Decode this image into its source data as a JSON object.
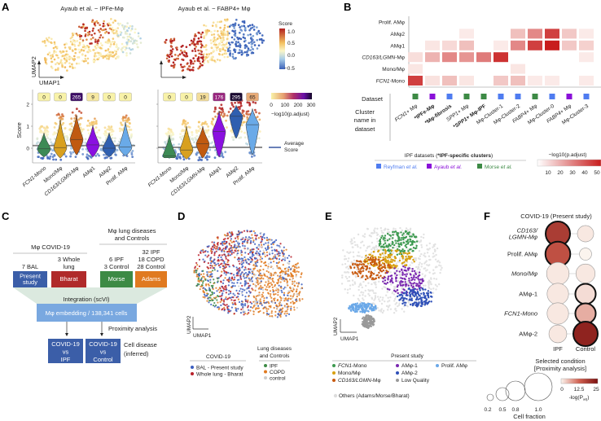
{
  "panels": {
    "A": {
      "label": "A",
      "umap_left_title": "Ayaub et al. − IPFe-Mφ",
      "umap_right_title": "Ayaub et al. − FABP4+ Mφ",
      "umap_x": "UMAP1",
      "umap_y": "UMAP2",
      "score_legend": {
        "title": "Score",
        "ticks": [
          "1.0",
          "0.5",
          "0.0",
          "−0.5"
        ]
      },
      "padj_legend": {
        "title": "−log10(p.adjust)",
        "ticks": [
          "0",
          "100",
          "200",
          "300"
        ]
      },
      "average_legend": {
        "label_line1": "Average",
        "label_line2": "Score"
      },
      "y_label": "Score",
      "y_ticks": [
        "2",
        "1",
        "0"
      ]
    },
    "B": {
      "label": "B",
      "dataset_label": "Dataset",
      "cluster_label_lines": [
        "Cluster",
        "name in",
        "dataset"
      ],
      "legend_title_plain": "IPF datasets (",
      "legend_title_bold": "*IPF-specific clusters",
      "legend_title_end": ")",
      "datasets": [
        {
          "name": "Reyfman",
          "suffix": " et al.",
          "color": "#4f7cf0"
        },
        {
          "name": "Ayaub",
          "suffix": " et al.",
          "color": "#8a10d8"
        },
        {
          "name": "Morse",
          "suffix": " et al.",
          "color": "#3d8a45"
        }
      ],
      "colorbar_title": "−log10(p.adjust)",
      "colorbar_ticks": [
        "10",
        "20",
        "30",
        "40",
        "50"
      ]
    },
    "C": {
      "label": "C",
      "covid_header": "Mφ COVID-19",
      "lung_header_1": "Mφ lung diseases",
      "lung_header_2": "and Controls",
      "sources": [
        {
          "above": [
            "7 BAL"
          ],
          "box": [
            "Present",
            "study"
          ],
          "color": "#3b5ea8"
        },
        {
          "above": [
            "3 Whole",
            "lung"
          ],
          "box": [
            "Bharat"
          ],
          "color": "#b02a2a"
        },
        {
          "above": [
            "6 IPF",
            "3 Control"
          ],
          "box": [
            "Morse"
          ],
          "color": "#3d8a45"
        },
        {
          "above": [
            "32 IPF",
            "18 COPD",
            "28 Control"
          ],
          "box": [
            "Adams"
          ],
          "color": "#e07a20"
        }
      ],
      "integration": "Integration (scVI)",
      "embedding": "Mφ embedding / 138,341 cells",
      "proximity": "Proximity analysis",
      "outcomes": [
        [
          "COVID-19",
          "vs",
          "IPF"
        ],
        [
          "COVID-19",
          "vs",
          "Control"
        ]
      ],
      "cell_disease_1": "Cell disease",
      "cell_disease_2": "(inferred)"
    },
    "D": {
      "label": "D",
      "umap_x": "UMAP1",
      "umap_y": "UMAP2",
      "covid_title": "COVID-19",
      "covid_items": [
        {
          "label": "BAL - Present study",
          "color": "#3b5ec0"
        },
        {
          "label": "Whole lung - Bharat",
          "color": "#b8202a"
        }
      ],
      "lung_title_1": "Lung diseases",
      "lung_title_2": "and Controls",
      "lung_items": [
        {
          "label": "IPF",
          "color": "#3d8a45"
        },
        {
          "label": "COPD",
          "color": "#e07a20"
        },
        {
          "label": "control",
          "color": "#cccccc"
        }
      ]
    },
    "E": {
      "label": "E",
      "umap_x": "UMAP1",
      "umap_y": "UMAP2",
      "legend_title": "Present study",
      "items": [
        {
          "label_it": "FCN1",
          "label": "-Mono",
          "color": "#3d9a50"
        },
        {
          "label_it": "",
          "label": "Mono/Mφ",
          "color": "#d8a010"
        },
        {
          "label_it": "CD163/LGMN",
          "label": "-Mφ",
          "color": "#c85a10"
        },
        {
          "label_it": "",
          "label": "AMφ-1",
          "color": "#7a28b0"
        },
        {
          "label_it": "",
          "label": "AMφ-2",
          "color": "#2f50b8"
        },
        {
          "label_it": "",
          "label": "Low Quality",
          "color": "#999999"
        },
        {
          "label_it": "",
          "label": "Prolif. AMφ",
          "color": "#6aa8e8"
        }
      ],
      "others": "Others (Adams/Morse/Bharat)"
    },
    "F": {
      "label": "F",
      "title": "COVID-19 (Present study)",
      "columns": [
        "IPF",
        "Control"
      ],
      "selected_1": "Selected condition",
      "selected_2": "[Proximity analysis]",
      "size_title": "Cell fraction",
      "size_ticks": [
        "0.2",
        "0.5",
        "0.8",
        "1.0"
      ],
      "color_title": "-log(P",
      "color_sub": "adj",
      "color_end": ")",
      "color_ticks": [
        "0",
        "12.5",
        "25"
      ]
    }
  },
  "chart_data": [
    {
      "type": "violin",
      "id": "A-left",
      "title": "Ayaub et al. − IPFe-Mφ",
      "ylabel": "Score",
      "ylim": [
        -0.6,
        2.4
      ],
      "categories": [
        "FCN1-Mono",
        "Mono/Mφ",
        "CD163/LGMN-Mφ",
        "AMφ1",
        "AMφ2",
        "Prolif. AMφ"
      ],
      "medians": [
        -0.03,
        0.03,
        0.4,
        0.15,
        0.0,
        0.05
      ],
      "ranges": [
        [
          -0.4,
          0.7
        ],
        [
          -0.45,
          1.3
        ],
        [
          -0.3,
          1.5
        ],
        [
          -0.4,
          1.05
        ],
        [
          -0.4,
          0.7
        ],
        [
          -0.35,
          1.2
        ]
      ],
      "neg_log10_padj": [
        0,
        0,
        265,
        9,
        0,
        0
      ],
      "average_score": 0.12,
      "colors": [
        "#3d8a55",
        "#d8a020",
        "#c05a10",
        "#8a10e0",
        "#2f5fb0",
        "#6aaae8"
      ]
    },
    {
      "type": "violin",
      "id": "A-right",
      "title": "Ayaub et al. − FABP4+ Mφ",
      "ylabel": "Score",
      "ylim": [
        -0.6,
        2.4
      ],
      "categories": [
        "FCN1-Mono",
        "Mono/Mφ",
        "CD163/LGMN-Mφ",
        "AMφ1",
        "AMφ2",
        "Prolif. AMφ"
      ],
      "medians": [
        -0.35,
        -0.08,
        0.2,
        0.75,
        1.45,
        1.07
      ],
      "ranges": [
        [
          -0.45,
          0.6
        ],
        [
          -0.5,
          1.0
        ],
        [
          -0.45,
          1.0
        ],
        [
          -0.4,
          1.7
        ],
        [
          0.45,
          1.95
        ],
        [
          -0.3,
          1.8
        ]
      ],
      "neg_log10_padj": [
        0,
        0,
        19,
        176,
        295,
        65
      ],
      "average_score": 0.04,
      "colors": [
        "#3d8a55",
        "#d8a020",
        "#c05a10",
        "#8a10e0",
        "#2f5fb0",
        "#6aaae8"
      ]
    },
    {
      "type": "heatmap",
      "id": "B",
      "rows": [
        "Prolif. AMφ",
        "AMφ2",
        "AMφ1",
        "CD163/LGMN-Mφ",
        "Mono/Mφ",
        "FCN1-Mono"
      ],
      "row_italic_part": [
        "",
        "",
        "",
        "CD163/LGMN",
        "",
        "FCN1"
      ],
      "columns": [
        {
          "name": "FCN1+ Mφ",
          "italic": "FCN1",
          "bold": false,
          "dataset": "Morse"
        },
        {
          "name": "*IPFe-Mφ",
          "italic": "",
          "bold": true,
          "dataset": "Ayaub"
        },
        {
          "name": "*Mφ-fibrosis",
          "italic": "",
          "bold": true,
          "dataset": "Reyfman"
        },
        {
          "name": "SPP1+ Mφ",
          "italic": "SPP1",
          "bold": false,
          "dataset": "Morse"
        },
        {
          "name": "*SPP1+ Mφ-IPF",
          "italic": "SPP1",
          "bold": true,
          "dataset": "Morse"
        },
        {
          "name": "Mφ-Cluster-1",
          "italic": "",
          "bold": false,
          "dataset": "Reyfman"
        },
        {
          "name": "Mφ-Cluster-2",
          "italic": "",
          "bold": false,
          "dataset": "Reyfman"
        },
        {
          "name": "FABP4+ Mφ",
          "italic": "FABP4",
          "bold": false,
          "dataset": "Morse"
        },
        {
          "name": "Mφ-Cluster-0",
          "italic": "",
          "bold": false,
          "dataset": "Reyfman"
        },
        {
          "name": "FABP4+ Mφ",
          "italic": "FABP4",
          "bold": false,
          "dataset": "Ayaub"
        },
        {
          "name": "Mφ-Cluster-3",
          "italic": "",
          "bold": false,
          "dataset": "Reyfman"
        }
      ],
      "values": [
        [
          0,
          0,
          0,
          0,
          0,
          0,
          0,
          0,
          0,
          0,
          0
        ],
        [
          0,
          0,
          0,
          2,
          0,
          0,
          12,
          25,
          42,
          10,
          2
        ],
        [
          0,
          3,
          6,
          12,
          0,
          2,
          25,
          42,
          50,
          10,
          8
        ],
        [
          5,
          15,
          25,
          22,
          28,
          45,
          0,
          0,
          0,
          0,
          2
        ],
        [
          3,
          0,
          0,
          0,
          0,
          0,
          3,
          0,
          0,
          0,
          0
        ],
        [
          42,
          4,
          12,
          3,
          0,
          10,
          12,
          2,
          2,
          0,
          2
        ]
      ],
      "color_range": [
        0,
        50
      ]
    },
    {
      "type": "dot",
      "id": "F",
      "rows": [
        "CD163/LGMN-Mφ",
        "Prolif. AMφ",
        "Mono/Mφ",
        "AMφ-1",
        "FCN1-Mono",
        "AMφ-2"
      ],
      "row_lines": [
        [
          "CD163/",
          "LGMN-Mφ"
        ],
        [
          "Prolif. AMφ"
        ],
        [
          "Mono/Mφ"
        ],
        [
          "AMφ-1"
        ],
        [
          "FCN1-Mono"
        ],
        [
          "AMφ-2"
        ]
      ],
      "row_italic": [
        true,
        false,
        true,
        false,
        true,
        false
      ],
      "columns": [
        "IPF",
        "Control"
      ],
      "cell_fraction": [
        [
          1.0,
          0.3
        ],
        [
          1.05,
          0.1
        ],
        [
          0.8,
          0.5
        ],
        [
          0.7,
          0.6
        ],
        [
          0.7,
          0.6
        ],
        [
          0.4,
          1.0
        ]
      ],
      "neg_log_padj": [
        [
          18,
          1
        ],
        [
          15,
          0
        ],
        [
          1,
          1
        ],
        [
          1,
          2
        ],
        [
          1,
          6
        ],
        [
          1,
          22
        ]
      ],
      "selected": [
        [
          true,
          false
        ],
        [
          true,
          false
        ],
        [
          false,
          false
        ],
        [
          false,
          true
        ],
        [
          false,
          true
        ],
        [
          false,
          true
        ]
      ],
      "color_range": [
        0,
        25
      ]
    }
  ]
}
